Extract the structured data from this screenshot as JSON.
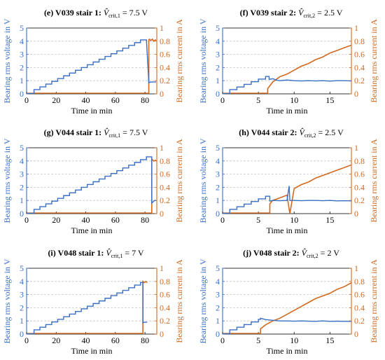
{
  "colors": {
    "voltage": "#3a6fc4",
    "current": "#d2691e",
    "grid": "#c8c8c8"
  },
  "chart_data": [
    {
      "type": "line",
      "title_prefix": "(e) V039 stair 1: ",
      "title_crit": "crit,1",
      "title_suffix": " = 7.5 V",
      "xlabel": "Time in min",
      "ylabel_left": "Bearing rms voltage in V",
      "ylabel_right": "Bearing rms current in A",
      "xlim": [
        0,
        88
      ],
      "xticks": [
        0,
        20,
        40,
        60,
        80
      ],
      "ylim_left": [
        0,
        5
      ],
      "yticks_left": [
        0,
        1,
        2,
        3,
        4,
        5
      ],
      "ylim_right": [
        0,
        1
      ],
      "yticks_right": [
        0,
        0.2,
        0.4,
        0.6,
        0.8,
        1
      ],
      "voltage_stairs": {
        "start": 5,
        "step_len": 4,
        "v0": 0.32,
        "dv": 0.21,
        "steps": 19,
        "end": 82.6
      },
      "voltage_after": {
        "x": [
          82.6,
          84,
          85.5,
          87.5
        ],
        "y": [
          0.85,
          0.9,
          0.9,
          0.9
        ]
      },
      "current_pre": {
        "x": [
          0,
          82.6
        ],
        "y": [
          0.01,
          0.01
        ]
      },
      "current_post": {
        "x": [
          82.6,
          83,
          84,
          85,
          86,
          87,
          87.5
        ],
        "y": [
          0.82,
          0.83,
          0.81,
          0.83,
          0.8,
          0.82,
          0.81
        ]
      },
      "grid_y": true
    },
    {
      "type": "line",
      "title_prefix": "(f) V039 stair 2: ",
      "title_crit": "crit,2",
      "title_suffix": " = 2.5 V",
      "xlabel": "Time in min",
      "ylabel_left": "Bearing rms voltage in V",
      "ylabel_right": "Bearing rms current in A",
      "xlim": [
        0,
        18
      ],
      "xticks": [
        0,
        5,
        10,
        15
      ],
      "ylim_left": [
        0,
        5
      ],
      "yticks_left": [
        0,
        1,
        2,
        3,
        4,
        5
      ],
      "ylim_right": [
        0,
        1
      ],
      "yticks_right": [
        0,
        0.2,
        0.4,
        0.6,
        0.8,
        1
      ],
      "voltage_stairs": {
        "start": 1,
        "step_len": 1,
        "v0": 0.32,
        "dv": 0.2,
        "steps": 6,
        "end": 6.5
      },
      "voltage_after": {
        "x": [
          6.5,
          7,
          7.5,
          8,
          9,
          10,
          11,
          12,
          13,
          14,
          15,
          16,
          17,
          18
        ],
        "y": [
          1.1,
          1.15,
          1.05,
          1.0,
          1.05,
          1.0,
          0.98,
          1.0,
          0.98,
          1.0,
          0.97,
          1.0,
          1.0,
          0.98
        ]
      },
      "current_pre": {
        "x": [
          0,
          6.3
        ],
        "y": [
          0.01,
          0.01
        ]
      },
      "current_post": {
        "x": [
          6.3,
          7,
          7.5,
          8,
          9,
          10,
          11,
          12,
          13,
          14,
          15,
          16,
          17,
          18
        ],
        "y": [
          0.08,
          0.18,
          0.22,
          0.26,
          0.3,
          0.36,
          0.42,
          0.46,
          0.52,
          0.56,
          0.62,
          0.66,
          0.7,
          0.74
        ]
      },
      "grid_y": true
    },
    {
      "type": "line",
      "title_prefix": "(g) V044 stair 1: ",
      "title_crit": "crit,1",
      "title_suffix": " = 7.5 V",
      "xlabel": "Time in min",
      "ylabel_left": "Bearing rms voltage in V",
      "ylabel_right": "Bearing rms current in A",
      "xlim": [
        0,
        88
      ],
      "xticks": [
        0,
        20,
        40,
        60,
        80
      ],
      "ylim_left": [
        0,
        5
      ],
      "yticks_left": [
        0,
        1,
        2,
        3,
        4,
        5
      ],
      "ylim_right": [
        0,
        1
      ],
      "yticks_right": [
        0,
        0.2,
        0.4,
        0.6,
        0.8,
        1
      ],
      "voltage_stairs": {
        "start": 5,
        "step_len": 4,
        "v0": 0.32,
        "dv": 0.21,
        "steps": 20,
        "end": 84.6
      },
      "voltage_after": {
        "x": [
          84.6,
          85.5,
          86.5,
          87.5
        ],
        "y": [
          0.8,
          0.9,
          1.0,
          1.0
        ]
      },
      "current_pre": {
        "x": [
          0,
          84.6
        ],
        "y": [
          0.01,
          0.01
        ]
      },
      "current_post": {
        "x": [
          84.6,
          85,
          86,
          87,
          87.5
        ],
        "y": [
          0.83,
          0.82,
          0.8,
          0.81,
          0.8
        ]
      },
      "grid_y": true
    },
    {
      "type": "line",
      "title_prefix": "(h) V044 stair 2: ",
      "title_crit": "crit,2",
      "title_suffix": " = 2.5 V",
      "xlabel": "Time in min",
      "ylabel_left": "Bearing rms voltage in V",
      "ylabel_right": "Bearing rms current in A",
      "xlim": [
        0,
        18
      ],
      "xticks": [
        0,
        5,
        10,
        15
      ],
      "ylim_left": [
        0,
        5
      ],
      "yticks_left": [
        0,
        1,
        2,
        3,
        4,
        5
      ],
      "ylim_right": [
        0,
        1
      ],
      "yticks_right": [
        0,
        0.2,
        0.4,
        0.6,
        0.8,
        1
      ],
      "voltage_stairs": {
        "start": 1,
        "step_len": 1,
        "v0": 0.32,
        "dv": 0.2,
        "steps": 6,
        "end": 6.6
      },
      "voltage_after": {
        "x": [
          6.6,
          7,
          8,
          9,
          9.3,
          9.4,
          10,
          11,
          12,
          13,
          14,
          15,
          16,
          17,
          18
        ],
        "y": [
          0.95,
          1.0,
          0.98,
          1.0,
          2.1,
          1.0,
          1.0,
          0.98,
          1.0,
          1.0,
          0.98,
          1.0,
          0.97,
          0.98,
          0.97
        ]
      },
      "current_pre": {
        "x": [
          0,
          6.6
        ],
        "y": [
          0.01,
          0.01
        ]
      },
      "current_post": {
        "x": [
          6.6,
          7,
          8,
          9,
          9.4,
          10,
          11,
          12,
          13,
          14,
          15,
          16,
          17,
          18
        ],
        "y": [
          0.15,
          0.2,
          0.24,
          0.28,
          0.0,
          0.38,
          0.44,
          0.48,
          0.54,
          0.58,
          0.62,
          0.66,
          0.7,
          0.74
        ]
      },
      "grid_y": true
    },
    {
      "type": "line",
      "title_prefix": "(i) V048 stair 1: ",
      "title_crit": "crit,1",
      "title_suffix": " = 7 V",
      "xlabel": "Time in min",
      "ylabel_left": "Bearing rms voltage in V",
      "ylabel_right": "Bearing rms current in A",
      "xlim": [
        0,
        88
      ],
      "xticks": [
        0,
        20,
        40,
        60,
        80
      ],
      "ylim_left": [
        0,
        5
      ],
      "yticks_left": [
        0,
        1,
        2,
        3,
        4,
        5
      ],
      "ylim_right": [
        0,
        1
      ],
      "yticks_right": [
        0,
        0.2,
        0.4,
        0.6,
        0.8,
        1
      ],
      "voltage_stairs": {
        "start": 5,
        "step_len": 4,
        "v0": 0.32,
        "dv": 0.2,
        "steps": 19,
        "end": 78.6
      },
      "voltage_after": {
        "x": [
          78.6,
          79.5,
          80.5,
          81.5
        ],
        "y": [
          0.85,
          0.9,
          0.9,
          0.9
        ]
      },
      "current_pre": {
        "x": [
          0,
          78.6
        ],
        "y": [
          0.01,
          0.01
        ]
      },
      "current_post": {
        "x": [
          78.6,
          79.5,
          80.5,
          81.5
        ],
        "y": [
          0.8,
          0.78,
          0.8,
          0.78
        ]
      },
      "grid_y": true
    },
    {
      "type": "line",
      "title_prefix": "(j) V048 stair 2: ",
      "title_crit": "crit,2",
      "title_suffix": " = 2 V",
      "xlabel": "Time in min",
      "ylabel_left": "Bearing rms voltage in V",
      "ylabel_right": "Bearing rms current in A",
      "xlim": [
        0,
        18
      ],
      "xticks": [
        0,
        5,
        10,
        15
      ],
      "ylim_left": [
        0,
        5
      ],
      "yticks_left": [
        0,
        1,
        2,
        3,
        4,
        5
      ],
      "ylim_right": [
        0,
        1
      ],
      "yticks_right": [
        0,
        0.2,
        0.4,
        0.6,
        0.8,
        1
      ],
      "voltage_stairs": {
        "start": 1,
        "step_len": 1,
        "v0": 0.32,
        "dv": 0.2,
        "steps": 5,
        "end": 5.3
      },
      "voltage_after": {
        "x": [
          5.3,
          6,
          7,
          8,
          9,
          10,
          11,
          12,
          13,
          14,
          15,
          16,
          17,
          18
        ],
        "y": [
          1.2,
          1.1,
          1.05,
          1.0,
          1.0,
          0.98,
          1.0,
          0.98,
          0.97,
          1.0,
          0.97,
          0.98,
          0.97,
          0.97
        ]
      },
      "current_pre": {
        "x": [
          0,
          5.3
        ],
        "y": [
          0.01,
          0.01
        ]
      },
      "current_post": {
        "x": [
          5.3,
          6,
          7,
          8,
          9,
          10,
          11,
          12,
          13,
          14,
          15,
          16,
          17,
          18
        ],
        "y": [
          0.08,
          0.14,
          0.2,
          0.24,
          0.3,
          0.36,
          0.42,
          0.48,
          0.54,
          0.58,
          0.62,
          0.68,
          0.72,
          0.78
        ]
      },
      "grid_y": true
    }
  ]
}
